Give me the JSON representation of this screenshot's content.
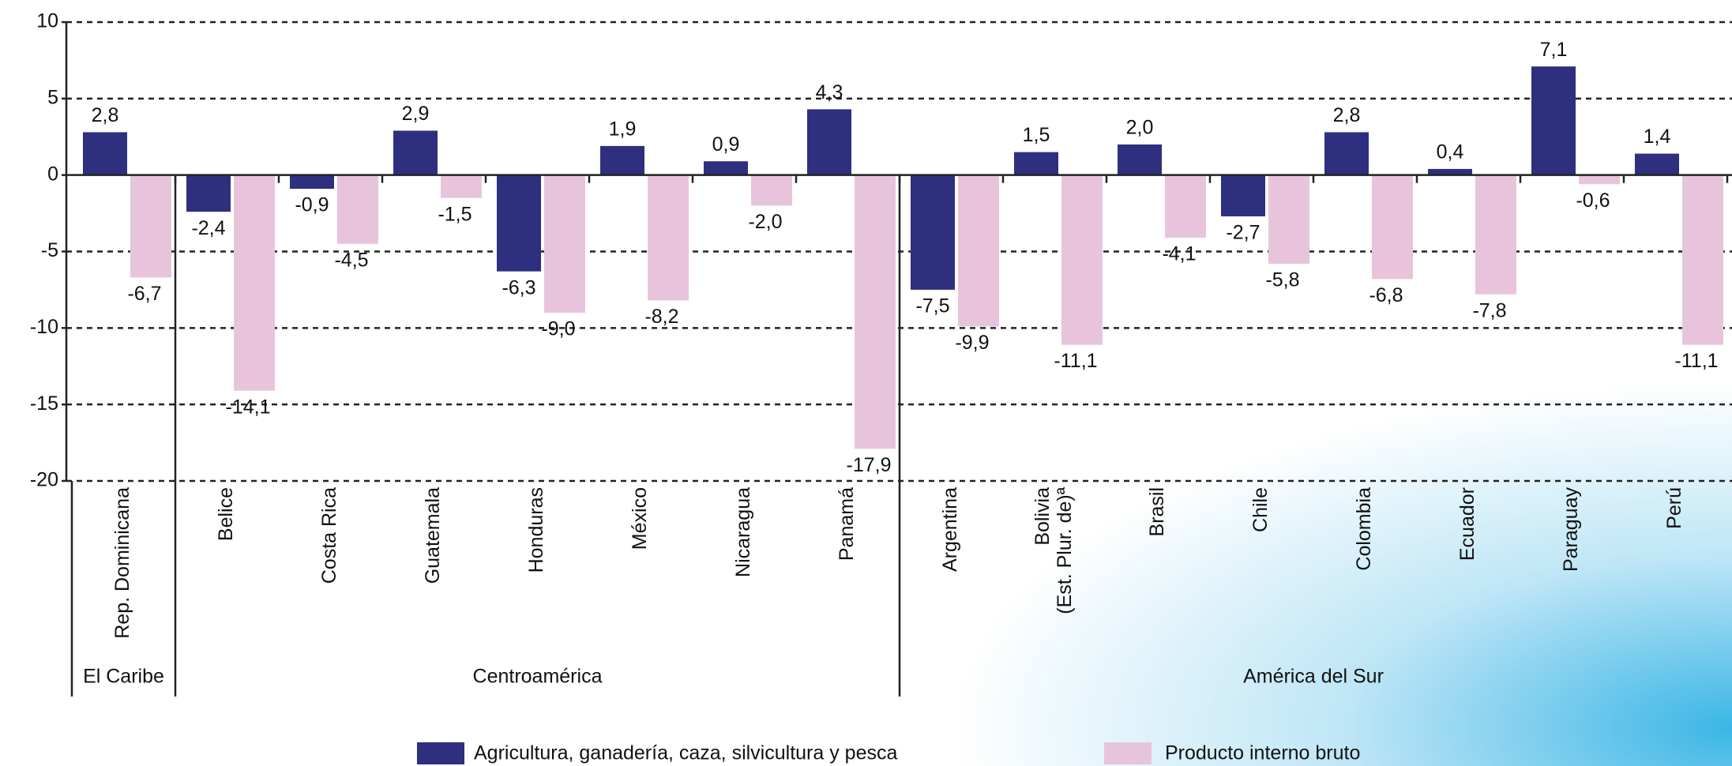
{
  "chart_data": {
    "type": "bar",
    "categories": [
      "Rep. Dominicana",
      "Belice",
      "Costa Rica",
      "Guatemala",
      "Honduras",
      "México",
      "Nicaragua",
      "Panamá",
      "Argentina",
      [
        "Bolivia",
        "(Est. Plur. de)ª"
      ],
      "Brasil",
      "Chile",
      "Colombia",
      "Ecuador",
      "Paraguay",
      "Perú"
    ],
    "regions": [
      {
        "name": "El Caribe",
        "span": 1
      },
      {
        "name": "Centroamérica",
        "span": 7
      },
      {
        "name": "América del Sur",
        "span": 8
      }
    ],
    "series": [
      {
        "name": "Agricultura, ganadería, caza, silvicultura y pesca",
        "color": "#2e2f7f",
        "values": [
          2.8,
          -2.4,
          -0.9,
          2.9,
          -6.3,
          1.9,
          0.9,
          4.3,
          -7.5,
          1.5,
          2.0,
          -2.7,
          2.8,
          0.4,
          7.1,
          1.4
        ],
        "value_labels": [
          "2,8",
          "-2,4",
          "-0,9",
          "2,9",
          "-6,3",
          "1,9",
          "0,9",
          "4,3",
          "-7,5",
          "1,5",
          "2,0",
          "-2,7",
          "2,8",
          "0,4",
          "7,1",
          "1,4"
        ]
      },
      {
        "name": "Producto interno bruto",
        "color": "#e8c4dc",
        "values": [
          -6.7,
          -14.1,
          -4.5,
          -1.5,
          -9.0,
          -8.2,
          -2.0,
          -17.9,
          -9.9,
          -11.1,
          -4.1,
          -5.8,
          -6.8,
          -7.8,
          -0.6,
          -11.1
        ],
        "value_labels": [
          "-6,7",
          "-14,1",
          "-4,5",
          "-1,5",
          "-9,0",
          "-8,2",
          "-2,0",
          "-17,9",
          "-9,9",
          "-11,1",
          "-4,1",
          "-5,8",
          "-6,8",
          "-7,8",
          "-0,6",
          "-11,1"
        ]
      }
    ],
    "ylim": [
      -20,
      10
    ],
    "yticks": [
      -20,
      -15,
      -10,
      -5,
      0,
      5,
      10
    ],
    "grid": true,
    "legend": "bottom"
  }
}
